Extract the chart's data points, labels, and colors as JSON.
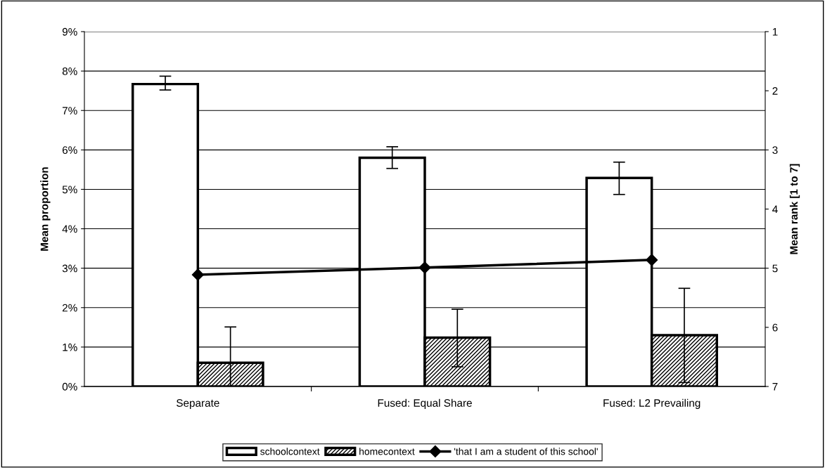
{
  "chart_data": {
    "type": "bar",
    "categories": [
      "Separate",
      "Fused: Equal Share",
      "Fused: L2 Prevailing"
    ],
    "ylabel": "Mean proportion",
    "y2label": "Mean rank [1 to 7]",
    "ylim": [
      0,
      9
    ],
    "yticks": [
      {
        "value": 0,
        "label": "0%"
      },
      {
        "value": 1,
        "label": "1%"
      },
      {
        "value": 2,
        "label": "2%"
      },
      {
        "value": 3,
        "label": "3%"
      },
      {
        "value": 4,
        "label": "4%"
      },
      {
        "value": 5,
        "label": "5%"
      },
      {
        "value": 6,
        "label": "6%"
      },
      {
        "value": 7,
        "label": "7%"
      },
      {
        "value": 8,
        "label": "8%"
      },
      {
        "value": 9,
        "label": "9%"
      }
    ],
    "y2lim": [
      7,
      1
    ],
    "y2ticks": [
      1,
      2,
      3,
      4,
      5,
      6,
      7
    ],
    "grid": "y",
    "legend": "bottom",
    "series": [
      {
        "name": "schoolcontext",
        "color": "#ffffff",
        "values": [
          7.67,
          5.8,
          5.29
        ],
        "errors": [
          [
            7.52,
            7.87
          ],
          [
            5.53,
            6.08
          ],
          [
            4.87,
            5.69
          ]
        ]
      },
      {
        "name": "homecontext",
        "color": "#000000",
        "values": [
          0.6,
          1.24,
          1.3
        ],
        "errors": [
          [
            0,
            1.51
          ],
          [
            0.5,
            1.96
          ],
          [
            0.1,
            2.49
          ]
        ]
      },
      {
        "name": "'that I am a student of this school'",
        "type": "line",
        "axis": "y2",
        "color": "#000000",
        "marker": "diamond",
        "line_style": "solid",
        "values": [
          5.11,
          4.99,
          4.86
        ]
      }
    ]
  }
}
